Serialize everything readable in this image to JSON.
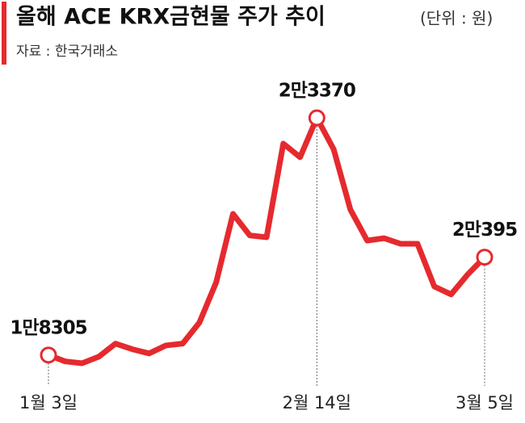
{
  "chart_data": {
    "type": "line",
    "title": "올해 ACE KRX금현물 주가 추이",
    "unit": "(단위 : 원)",
    "source": "자료 : 한국거래소",
    "categories": [
      "1월 3일",
      null,
      null,
      null,
      null,
      null,
      null,
      null,
      null,
      null,
      null,
      null,
      null,
      null,
      null,
      null,
      "2월 14일",
      null,
      null,
      null,
      null,
      null,
      null,
      null,
      null,
      null,
      "3월 5일"
    ],
    "series": [
      {
        "color": "#e52a2e",
        "values": [
          18305,
          18170,
          18130,
          18270,
          18550,
          18430,
          18340,
          18510,
          18550,
          19000,
          19860,
          21320,
          20860,
          20820,
          22820,
          22530,
          23370,
          22700,
          21410,
          20750,
          20800,
          20680,
          20680,
          19770,
          19600,
          20030,
          20395
        ],
        "value_labels": [
          "1만8305",
          null,
          null,
          null,
          null,
          null,
          null,
          null,
          null,
          null,
          null,
          null,
          null,
          null,
          null,
          null,
          "2만3370",
          null,
          null,
          null,
          null,
          null,
          null,
          null,
          null,
          null,
          "2만395"
        ]
      }
    ]
  }
}
